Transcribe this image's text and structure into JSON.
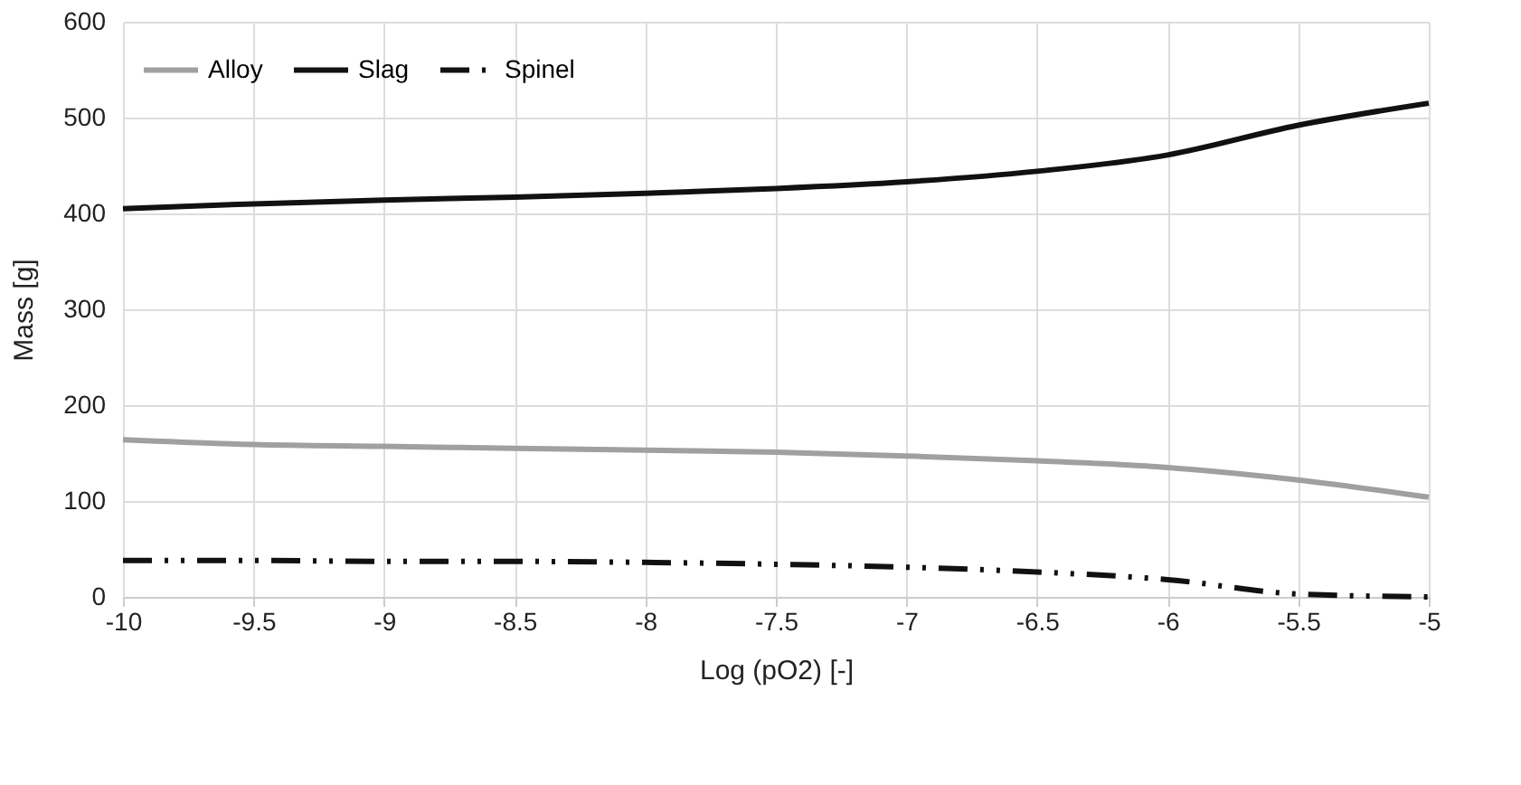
{
  "chart_data": {
    "type": "line",
    "xlabel": "Log (pO2) [-]",
    "ylabel": "Mass [g]",
    "x": [
      -10,
      -9.5,
      -9,
      -8.5,
      -8,
      -7.5,
      -7,
      -6.5,
      -6,
      -5.5,
      -5
    ],
    "series": [
      {
        "name": "Alloy",
        "color": "#a0a0a0",
        "line_style": "solid",
        "values": [
          164,
          159,
          157,
          155,
          153,
          151,
          147,
          142,
          135,
          122,
          104
        ]
      },
      {
        "name": "Slag",
        "color": "#111111",
        "line_style": "solid",
        "values": [
          405,
          410,
          414,
          417,
          421,
          426,
          433,
          444,
          461,
          492,
          515
        ]
      },
      {
        "name": "Spinel",
        "color": "#111111",
        "line_style": "dashed",
        "values": [
          38,
          38,
          37,
          37,
          36,
          34,
          31,
          26,
          18,
          3,
          0
        ]
      }
    ],
    "xlim": [
      -10,
      -5
    ],
    "xticks": [
      -10,
      -9.5,
      -9,
      -8.5,
      -8,
      -7.5,
      -7,
      -6.5,
      -6,
      -5.5,
      -5
    ],
    "ylim": [
      0,
      600
    ],
    "yticks": [
      0,
      100,
      200,
      300,
      400,
      500,
      600
    ],
    "grid": true,
    "legend": "top left",
    "marker": "none"
  }
}
